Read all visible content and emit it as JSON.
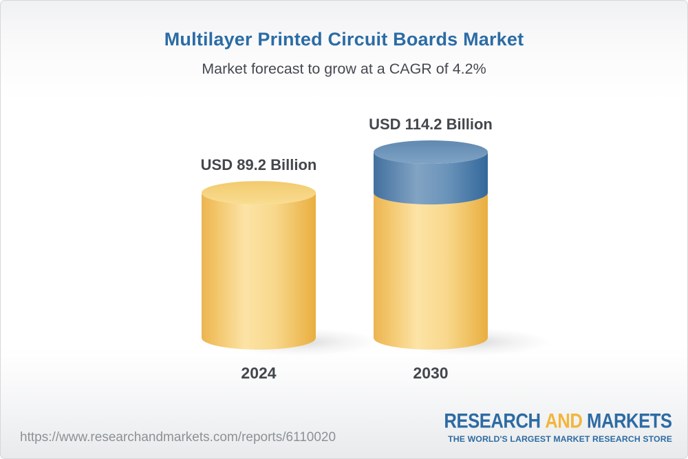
{
  "header": {
    "title": "Multilayer Printed Circuit Boards Market",
    "subtitle": "Market forecast to grow at a CAGR of 4.2%"
  },
  "chart_data": {
    "type": "bar",
    "variant": "3d-cylinder",
    "title": "Multilayer Printed Circuit Boards Market",
    "subtitle": "Market forecast to grow at a CAGR of 4.2%",
    "unit": "USD Billion",
    "cagr_percent": 4.2,
    "categories": [
      "2024",
      "2030"
    ],
    "values": [
      89.2,
      114.2
    ],
    "value_labels": [
      "USD 89.2 Billion",
      "USD 114.2 Billion"
    ],
    "series": [
      {
        "name": "base-2024-level",
        "values": [
          89.2,
          89.2
        ],
        "color": "#f3c96f"
      },
      {
        "name": "growth-above-2024",
        "values": [
          0,
          25.0
        ],
        "color": "#6991b8"
      }
    ],
    "ylim": [
      0,
      114.2
    ],
    "grid": false,
    "legend": "none"
  },
  "colors": {
    "title_blue": "#2b6ca5",
    "text_dark": "#43474c",
    "bar_yellow": "#f3c96f",
    "bar_blue": "#6991b8",
    "logo_blue": "#2d6ba3",
    "logo_gold": "#f2b63d",
    "url_gray": "#8c9196"
  },
  "footer": {
    "url": "https://www.researchandmarkets.com/reports/6110020",
    "logo": {
      "line1_part1": "RESEARCH",
      "line1_and": "AND",
      "line1_part2": "MARKETS",
      "tagline": "THE WORLD'S LARGEST MARKET RESEARCH STORE"
    }
  }
}
